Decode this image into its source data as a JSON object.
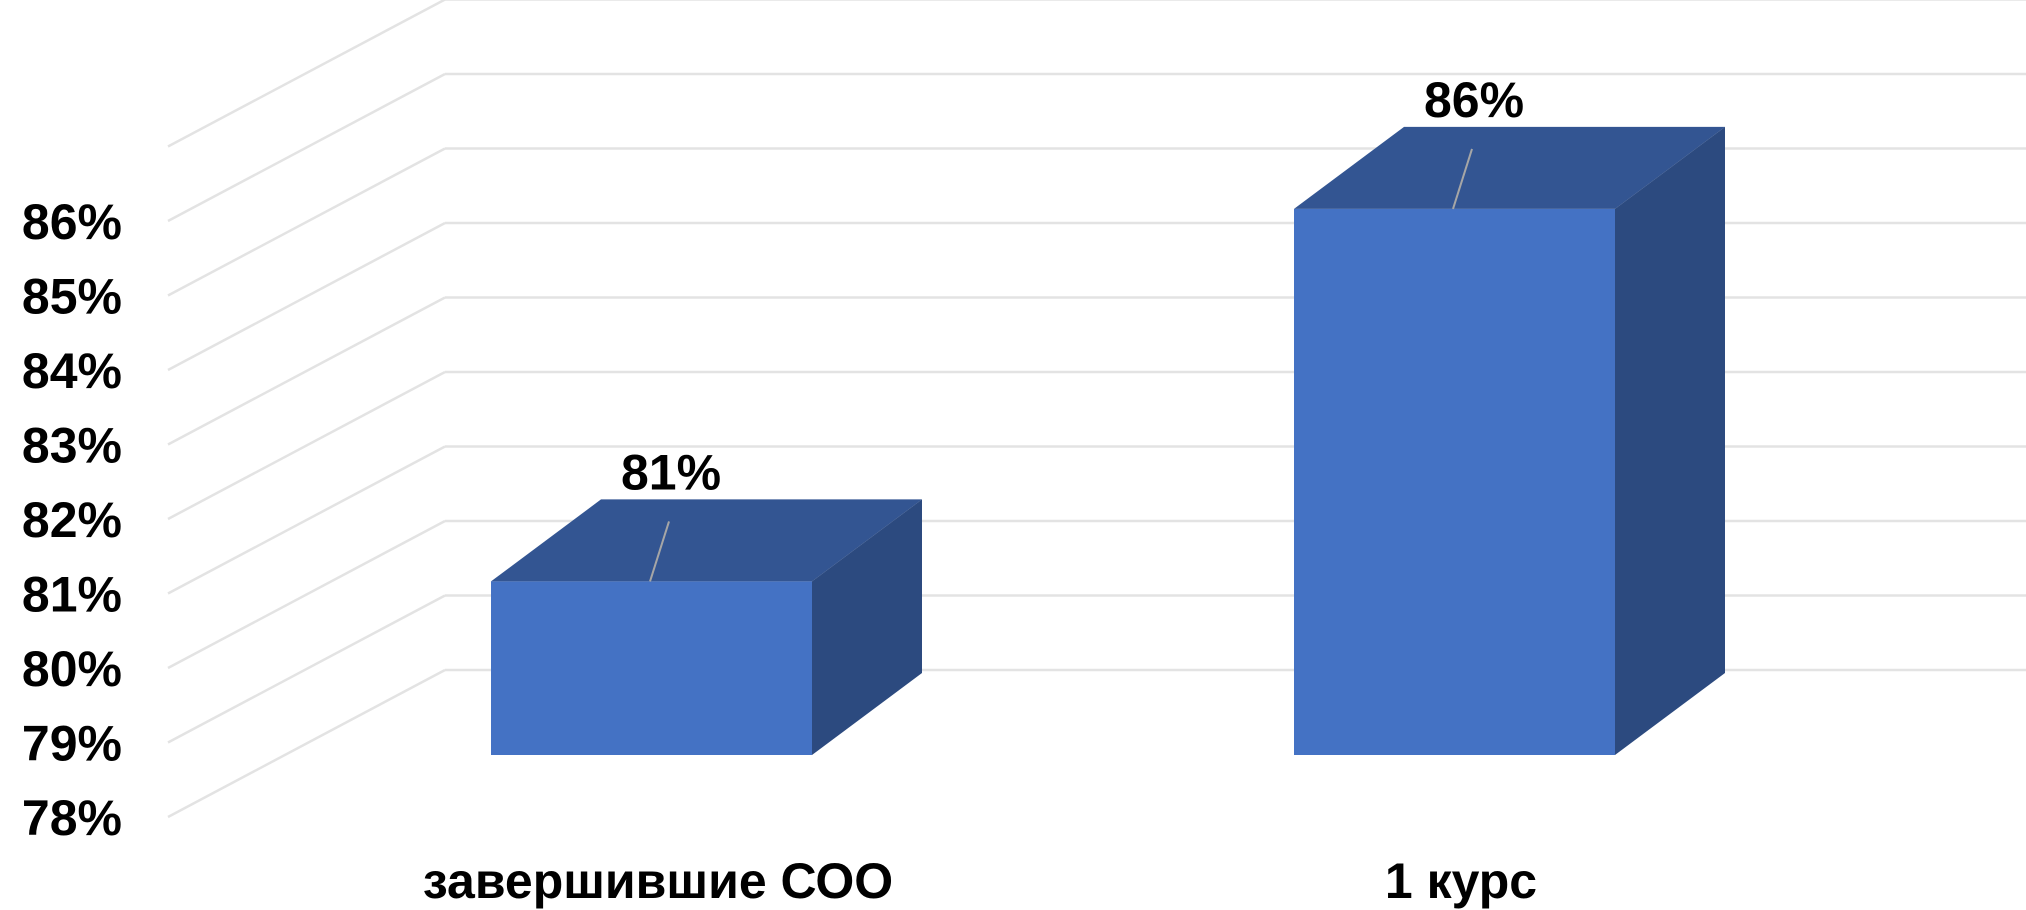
{
  "chart_data": {
    "type": "bar",
    "style": "3d-column",
    "categories": [
      "завершившие СОО",
      "1 курс"
    ],
    "values": [
      81,
      86
    ],
    "data_labels": [
      "81%",
      "86%"
    ],
    "y_ticks": [
      "78%",
      "79%",
      "80%",
      "81%",
      "82%",
      "83%",
      "84%",
      "85%",
      "86%"
    ],
    "ylim": [
      78,
      87
    ],
    "grid": true,
    "legend": "none",
    "colors": {
      "bar_front": "#4472c4",
      "bar_top": "#335592",
      "bar_side": "#2c4a7f",
      "gridline": "#e3e3e3",
      "leader": "#a6a6a6"
    }
  }
}
